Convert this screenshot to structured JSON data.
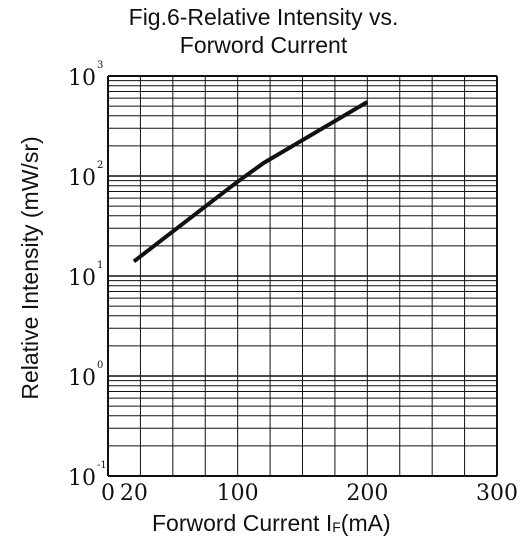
{
  "chart_data": {
    "type": "line",
    "title": "Fig.6-Relative Intensity vs.",
    "subtitle": "Forword Current",
    "xlabel": {
      "prefix": "Forword Current I",
      "subscript": "F",
      "suffix": "(mA)"
    },
    "ylabel": "Relative Intensity (mW/sr)",
    "x_scale": "linear",
    "y_scale": "log",
    "xlim": [
      0,
      300
    ],
    "ylim": [
      0.1,
      1000
    ],
    "x_ticks": [
      {
        "value": 0,
        "label": "0"
      },
      {
        "value": 20,
        "label": "20"
      },
      {
        "value": 100,
        "label": "100"
      },
      {
        "value": 200,
        "label": "200"
      },
      {
        "value": 300,
        "label": "300"
      }
    ],
    "y_ticks": [
      {
        "value": 0.1,
        "base": "10",
        "exp": "-1"
      },
      {
        "value": 1,
        "base": "10",
        "exp": "0"
      },
      {
        "value": 10,
        "base": "10",
        "exp": "1"
      },
      {
        "value": 100,
        "base": "10",
        "exp": "2"
      },
      {
        "value": 1000,
        "base": "10",
        "exp": "3"
      }
    ],
    "grid": true,
    "series": [
      {
        "x": [
          20,
          100,
          120,
          200
        ],
        "y": [
          14,
          88,
          135,
          550
        ]
      }
    ]
  }
}
